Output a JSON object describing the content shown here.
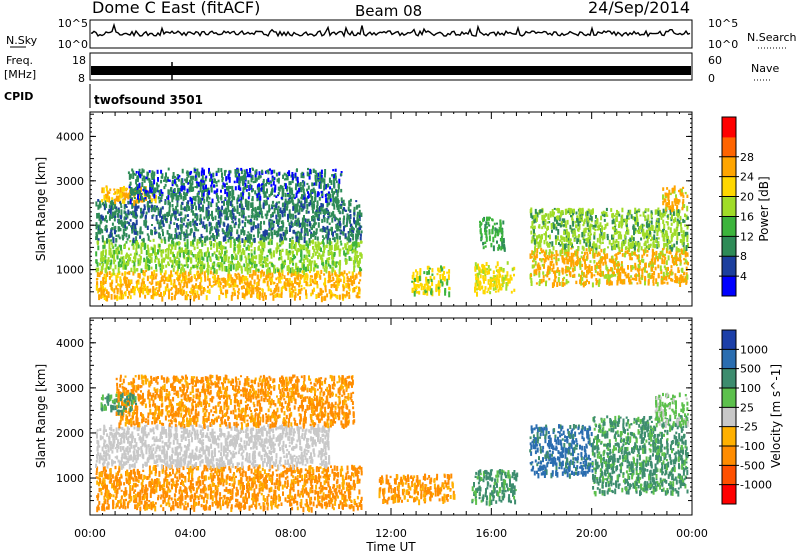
{
  "header": {
    "station": "Dome C East (fitACF)",
    "beam": "Beam 08",
    "date": "24/Sep/2014"
  },
  "top_panels": {
    "nsky_label": "N.Sky",
    "nsky_top": "10^5",
    "nsky_bottom": "10^0",
    "nsearch_label": "N.Search",
    "nsearch_top": "10^5",
    "nsearch_bottom": "10^0",
    "freq_label_1": "Freq.",
    "freq_label_2": "[MHz]",
    "freq_top": "18",
    "freq_bottom": "8",
    "nave_label": "Nave",
    "nave_top": "60",
    "nave_bottom": "0",
    "cpid_label": "CPID",
    "cpid_value": "twofsound 3501"
  },
  "chart_data": [
    {
      "type": "heatmap",
      "title": "",
      "ylabel": "Slant Range [km]",
      "xlabel": "Time UT",
      "yticks": [
        "1000",
        "2000",
        "3000",
        "4000"
      ],
      "ylim": [
        180,
        4550
      ],
      "xticks": [
        "00:00",
        "04:00",
        "08:00",
        "12:00",
        "16:00",
        "20:00",
        "00:00"
      ],
      "xlim_hours": [
        0,
        24
      ],
      "colorbar": {
        "label": "Power [dB]",
        "ticks": [
          "4",
          "8",
          "12",
          "16",
          "20",
          "24",
          "28"
        ],
        "colors": [
          "#0000ff",
          "#1c3f9e",
          "#2e8b57",
          "#3cb43c",
          "#a0dc28",
          "#ffd700",
          "#ffa500",
          "#ff6400",
          "#ff0000"
        ]
      },
      "regions": [
        {
          "t0": 0.2,
          "t1": 10.8,
          "r0": 400,
          "r1": 1000,
          "value": 26
        },
        {
          "t0": 0.2,
          "t1": 10.8,
          "r0": 1000,
          "r1": 1700,
          "value": 18
        },
        {
          "t0": 0.2,
          "t1": 10.8,
          "r0": 1700,
          "r1": 2600,
          "value": 10
        },
        {
          "t0": 0.4,
          "t1": 2.6,
          "r0": 2550,
          "r1": 2900,
          "value": 26
        },
        {
          "t0": 1.5,
          "t1": 10.0,
          "r0": 2600,
          "r1": 3300,
          "value": 8
        },
        {
          "t0": 12.8,
          "t1": 14.3,
          "r0": 500,
          "r1": 1100,
          "value": 20
        },
        {
          "t0": 15.3,
          "t1": 16.9,
          "r0": 500,
          "r1": 1200,
          "value": 22
        },
        {
          "t0": 15.5,
          "t1": 16.5,
          "r0": 1500,
          "r1": 2200,
          "value": 14
        },
        {
          "t0": 17.5,
          "t1": 23.8,
          "r0": 700,
          "r1": 1500,
          "value": 24
        },
        {
          "t0": 17.5,
          "t1": 23.8,
          "r0": 1500,
          "r1": 2400,
          "value": 16
        },
        {
          "t0": 22.8,
          "t1": 23.8,
          "r0": 2400,
          "r1": 2900,
          "value": 24
        }
      ]
    },
    {
      "type": "heatmap",
      "title": "",
      "ylabel": "Slant Range [km]",
      "xlabel": "Time UT",
      "yticks": [
        "1000",
        "2000",
        "3000",
        "4000"
      ],
      "ylim": [
        180,
        4550
      ],
      "xticks": [
        "00:00",
        "04:00",
        "08:00",
        "12:00",
        "16:00",
        "20:00",
        "00:00"
      ],
      "xlim_hours": [
        0,
        24
      ],
      "colorbar": {
        "label": "Velocity [m s^-1]",
        "ticks": [
          "1000",
          "500",
          "100",
          "25",
          "-25",
          "-100",
          "-500",
          "-1000"
        ],
        "colors": [
          "#1c3fa8",
          "#2a6db0",
          "#3d8c6e",
          "#5cc04c",
          "#c8c8c8",
          "#ffb000",
          "#ff8c00",
          "#ff5000",
          "#ff0000"
        ]
      },
      "regions": [
        {
          "t0": 0.2,
          "t1": 10.8,
          "r0": 350,
          "r1": 1300,
          "value": -300
        },
        {
          "t0": 0.2,
          "t1": 9.5,
          "r0": 1300,
          "r1": 2200,
          "value": 0
        },
        {
          "t0": 1.0,
          "t1": 10.5,
          "r0": 2200,
          "r1": 3300,
          "value": -200
        },
        {
          "t0": 0.4,
          "t1": 1.8,
          "r0": 2500,
          "r1": 2900,
          "value": 200
        },
        {
          "t0": 11.5,
          "t1": 14.5,
          "r0": 500,
          "r1": 1100,
          "value": -150
        },
        {
          "t0": 15.2,
          "t1": 17.0,
          "r0": 500,
          "r1": 1200,
          "value": 200
        },
        {
          "t0": 17.5,
          "t1": 20.0,
          "r0": 1100,
          "r1": 2200,
          "value": 800
        },
        {
          "t0": 20.0,
          "t1": 23.8,
          "r0": 700,
          "r1": 2400,
          "value": 300
        },
        {
          "t0": 22.5,
          "t1": 23.8,
          "r0": 2200,
          "r1": 2900,
          "value": 50
        }
      ]
    }
  ]
}
